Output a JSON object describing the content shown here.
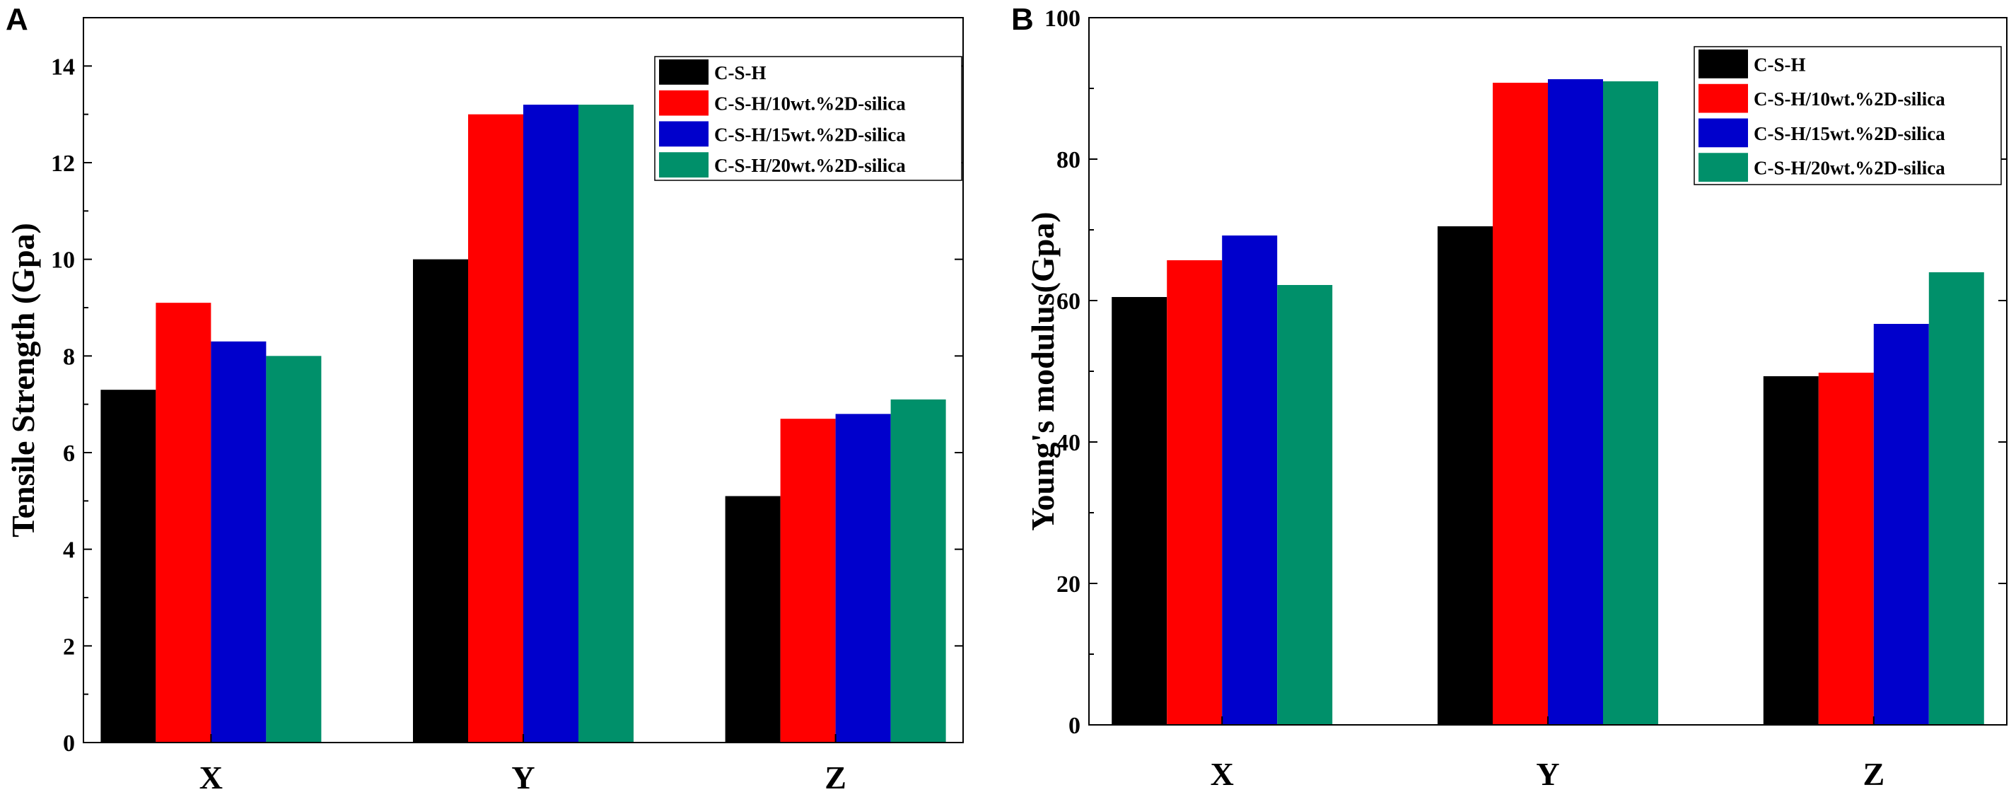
{
  "colors": {
    "series": [
      "#000000",
      "#ff0000",
      "#0000cc",
      "#00906a"
    ]
  },
  "chart_data": [
    {
      "type": "bar",
      "panel_label": "A",
      "title": "",
      "xlabel": "",
      "ylabel": "Tensile Strength (Gpa)",
      "categories": [
        "X",
        "Y",
        "Z"
      ],
      "ylim": [
        0,
        15
      ],
      "yticks": [
        0,
        2,
        4,
        6,
        8,
        10,
        12,
        14
      ],
      "legend_position": "top-right",
      "series": [
        {
          "name": "C-S-H",
          "values": [
            7.3,
            10.0,
            5.1
          ]
        },
        {
          "name": "C-S-H/10wt.%2D-silica",
          "values": [
            9.1,
            13.0,
            6.7
          ]
        },
        {
          "name": "C-S-H/15wt.%2D-silica",
          "values": [
            8.3,
            13.2,
            6.8
          ]
        },
        {
          "name": "C-S-H/20wt.%2D-silica",
          "values": [
            8.0,
            13.2,
            7.1
          ]
        }
      ]
    },
    {
      "type": "bar",
      "panel_label": "B",
      "title": "",
      "xlabel": "",
      "ylabel": "Young's modulus(Gpa)",
      "categories": [
        "X",
        "Y",
        "Z"
      ],
      "ylim": [
        0,
        100
      ],
      "yticks": [
        0,
        20,
        40,
        60,
        80,
        100
      ],
      "legend_position": "top-right",
      "series": [
        {
          "name": "C-S-H",
          "values": [
            60.5,
            70.5,
            49.3
          ]
        },
        {
          "name": "C-S-H/10wt.%2D-silica",
          "values": [
            65.7,
            90.8,
            49.8
          ]
        },
        {
          "name": "C-S-H/15wt.%2D-silica",
          "values": [
            69.2,
            91.3,
            56.7
          ]
        },
        {
          "name": "C-S-H/20wt.%2D-silica",
          "values": [
            62.2,
            91.0,
            64.0
          ]
        }
      ]
    }
  ]
}
